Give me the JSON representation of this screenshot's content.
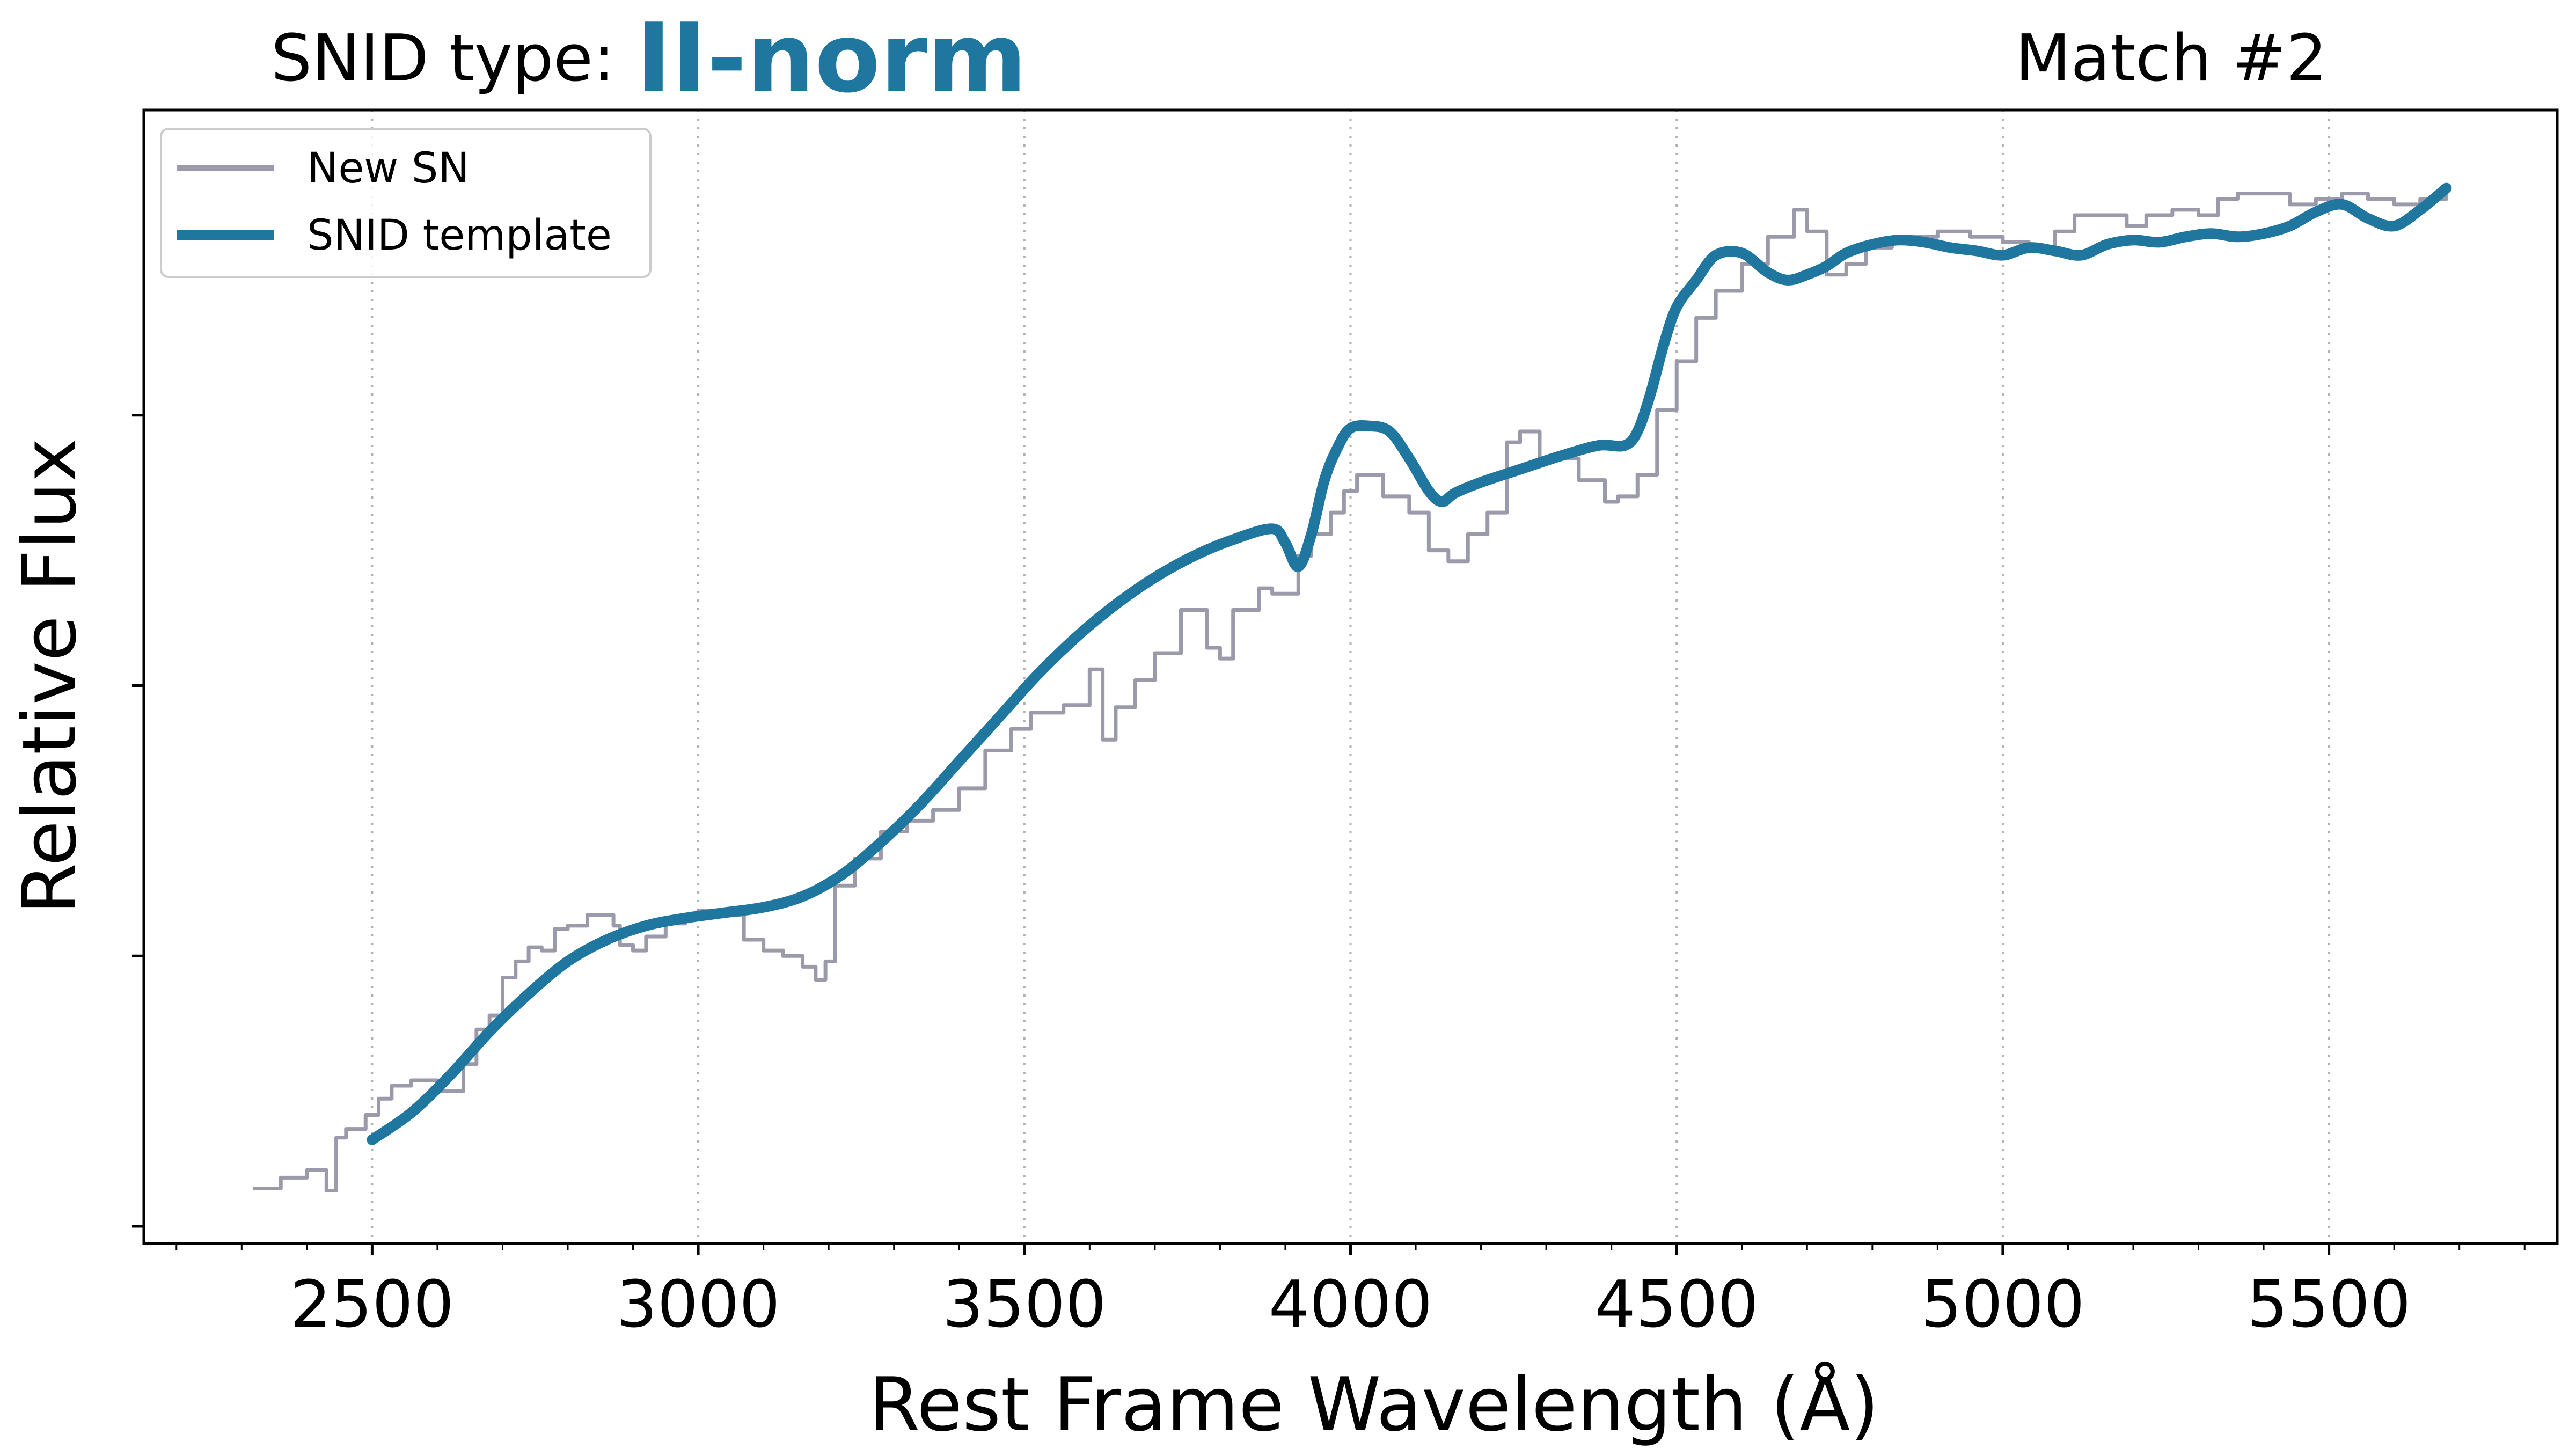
{
  "title": {
    "prefix": "SNID type:",
    "type_name": "II-norm",
    "type_color": "#1f77a0",
    "match": "Match #2"
  },
  "chart_data": {
    "type": "line",
    "xlabel": "Rest Frame Wavelength (Å)",
    "ylabel": "Relative Flux",
    "xlim": [
      2150,
      5850
    ],
    "ylim": [
      0.0,
      1.0
    ],
    "x_ticks": [
      2500,
      3000,
      3500,
      4000,
      4500,
      5000,
      5500
    ],
    "x_tick_labels": [
      "2500",
      "3000",
      "3500",
      "4000",
      "4500",
      "5000",
      "5500"
    ],
    "x_minor_step": 100,
    "y_ticks": [
      0.0,
      0.25,
      0.5,
      0.75
    ],
    "y_tick_labels_shown": false,
    "grid": "vertical dotted at major x ticks",
    "legend_position": "top-left",
    "series": [
      {
        "name": "New SN",
        "color": "#9a9aaa",
        "style": "steps",
        "x": [
          2320,
          2360,
          2400,
          2430,
          2445,
          2460,
          2490,
          2510,
          2530,
          2560,
          2600,
          2640,
          2660,
          2680,
          2700,
          2720,
          2740,
          2760,
          2780,
          2800,
          2830,
          2870,
          2880,
          2900,
          2920,
          2950,
          2980,
          3000,
          3030,
          3070,
          3100,
          3130,
          3160,
          3180,
          3195,
          3210,
          3240,
          3280,
          3320,
          3360,
          3400,
          3440,
          3480,
          3510,
          3560,
          3600,
          3620,
          3640,
          3670,
          3700,
          3740,
          3780,
          3800,
          3820,
          3860,
          3880,
          3900,
          3920,
          3940,
          3970,
          3990,
          4010,
          4050,
          4090,
          4120,
          4150,
          4180,
          4210,
          4240,
          4260,
          4290,
          4320,
          4350,
          4390,
          4410,
          4440,
          4470,
          4500,
          4530,
          4560,
          4600,
          4640,
          4680,
          4700,
          4730,
          4760,
          4790,
          4830,
          4860,
          4900,
          4950,
          5000,
          5040,
          5080,
          5110,
          5150,
          5190,
          5220,
          5260,
          5300,
          5330,
          5360,
          5400,
          5440,
          5480,
          5520,
          5560,
          5600,
          5640,
          5680
        ],
        "y": [
          0.035,
          0.045,
          0.052,
          0.033,
          0.082,
          0.09,
          0.103,
          0.118,
          0.13,
          0.135,
          0.125,
          0.15,
          0.182,
          0.195,
          0.23,
          0.245,
          0.258,
          0.255,
          0.275,
          0.278,
          0.288,
          0.278,
          0.26,
          0.255,
          0.268,
          0.28,
          0.285,
          0.292,
          0.288,
          0.265,
          0.255,
          0.25,
          0.24,
          0.228,
          0.245,
          0.315,
          0.34,
          0.365,
          0.375,
          0.385,
          0.405,
          0.44,
          0.46,
          0.475,
          0.482,
          0.515,
          0.45,
          0.48,
          0.505,
          0.53,
          0.57,
          0.535,
          0.525,
          0.57,
          0.59,
          0.585,
          0.585,
          0.62,
          0.64,
          0.66,
          0.68,
          0.695,
          0.675,
          0.66,
          0.625,
          0.615,
          0.64,
          0.66,
          0.725,
          0.735,
          0.71,
          0.71,
          0.69,
          0.67,
          0.675,
          0.695,
          0.755,
          0.8,
          0.84,
          0.865,
          0.89,
          0.915,
          0.94,
          0.92,
          0.88,
          0.89,
          0.905,
          0.91,
          0.915,
          0.92,
          0.915,
          0.91,
          0.905,
          0.92,
          0.935,
          0.935,
          0.925,
          0.935,
          0.94,
          0.935,
          0.95,
          0.955,
          0.955,
          0.945,
          0.95,
          0.955,
          0.95,
          0.945,
          0.95,
          0.955
        ]
      },
      {
        "name": "SNID template",
        "color": "#1f77a0",
        "style": "smooth",
        "x": [
          2500,
          2560,
          2620,
          2680,
          2740,
          2800,
          2860,
          2920,
          2980,
          3040,
          3100,
          3160,
          3220,
          3280,
          3340,
          3400,
          3460,
          3520,
          3580,
          3640,
          3700,
          3760,
          3820,
          3880,
          3900,
          3920,
          3940,
          3960,
          3980,
          4000,
          4030,
          4060,
          4090,
          4120,
          4140,
          4160,
          4200,
          4260,
          4320,
          4380,
          4420,
          4440,
          4460,
          4480,
          4500,
          4530,
          4560,
          4600,
          4640,
          4670,
          4700,
          4730,
          4760,
          4800,
          4840,
          4880,
          4920,
          4960,
          5000,
          5040,
          5080,
          5120,
          5160,
          5200,
          5240,
          5280,
          5320,
          5360,
          5400,
          5440,
          5480,
          5520,
          5560,
          5600,
          5640,
          5680
        ],
        "y": [
          0.08,
          0.105,
          0.14,
          0.18,
          0.215,
          0.245,
          0.265,
          0.278,
          0.285,
          0.29,
          0.295,
          0.305,
          0.325,
          0.355,
          0.39,
          0.43,
          0.47,
          0.51,
          0.545,
          0.575,
          0.6,
          0.62,
          0.635,
          0.645,
          0.632,
          0.61,
          0.64,
          0.69,
          0.72,
          0.738,
          0.74,
          0.735,
          0.71,
          0.68,
          0.67,
          0.678,
          0.688,
          0.7,
          0.712,
          0.722,
          0.722,
          0.735,
          0.77,
          0.815,
          0.85,
          0.875,
          0.898,
          0.9,
          0.882,
          0.875,
          0.88,
          0.888,
          0.9,
          0.908,
          0.912,
          0.91,
          0.905,
          0.902,
          0.898,
          0.905,
          0.902,
          0.898,
          0.908,
          0.912,
          0.91,
          0.915,
          0.918,
          0.915,
          0.918,
          0.925,
          0.938,
          0.945,
          0.932,
          0.925,
          0.94,
          0.96
        ]
      }
    ]
  }
}
